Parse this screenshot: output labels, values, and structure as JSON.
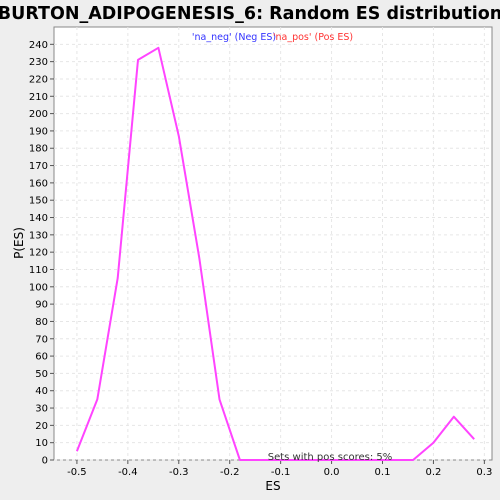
{
  "chart_data": {
    "type": "line",
    "title": "BURTON_ADIPOGENESIS_6: Random ES distribution",
    "xlabel": "ES",
    "ylabel": "P(ES)",
    "xlim": [
      -0.545,
      0.315
    ],
    "ylim": [
      0,
      250
    ],
    "grid": true,
    "x_ticks": [
      -0.5,
      -0.4,
      -0.3,
      -0.2,
      -0.1,
      0.0,
      0.1,
      0.2,
      0.3
    ],
    "x_tick_labels": [
      "-0.5",
      "-0.4",
      "-0.3",
      "-0.2",
      "-0.1",
      "0.0",
      "0.1",
      "0.2",
      "0.3"
    ],
    "y_ticks": [
      0,
      10,
      20,
      30,
      40,
      50,
      60,
      70,
      80,
      90,
      100,
      110,
      120,
      130,
      140,
      150,
      160,
      170,
      180,
      190,
      200,
      210,
      220,
      230,
      240
    ],
    "y_tick_labels": [
      "0",
      "10",
      "20",
      "30",
      "40",
      "50",
      "60",
      "70",
      "80",
      "90",
      "100",
      "110",
      "120",
      "130",
      "140",
      "150",
      "160",
      "170",
      "180",
      "190",
      "200",
      "210",
      "220",
      "230",
      "240"
    ],
    "legend": {
      "position": "top-center",
      "entries": [
        {
          "label": "'na_neg' (Neg ES)",
          "color": "#3333ff"
        },
        {
          "label": "'na_pos' (Pos ES)",
          "color": "#ff3333"
        }
      ]
    },
    "series": [
      {
        "color": "#ff44ff",
        "x": [
          -0.5,
          -0.46,
          -0.42,
          -0.38,
          -0.34,
          -0.3,
          -0.26,
          -0.22,
          -0.18,
          -0.14,
          -0.1,
          0.16,
          0.2,
          0.24,
          0.28
        ],
        "y": [
          5,
          35,
          105,
          231,
          238,
          187,
          117,
          35,
          0,
          0,
          0,
          0,
          10,
          25,
          12
        ]
      }
    ],
    "annotation": "Sets with pos scores: 5%"
  },
  "colors": {
    "background": "#eeeeee",
    "plot_background": "#ffffff",
    "grid": "#e6e6e6",
    "line": "#ff44ff"
  }
}
